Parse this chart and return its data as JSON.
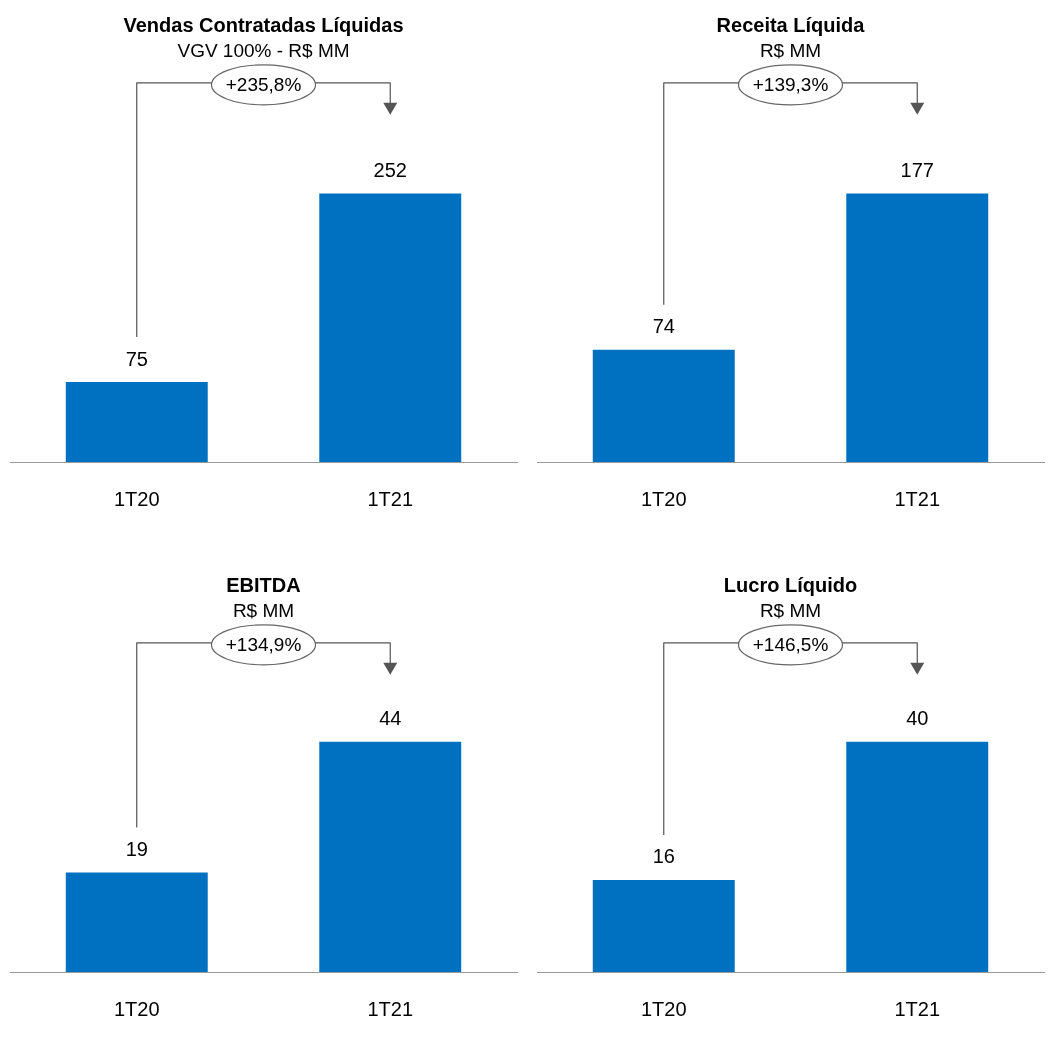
{
  "chart_data": [
    {
      "type": "bar",
      "title": "Vendas Contratadas Líquidas",
      "subtitle": "VGV 100% - R$ MM",
      "categories": [
        "1T20",
        "1T21"
      ],
      "values": [
        75,
        252
      ],
      "color": "#0070c0",
      "data_labels": true,
      "annotations": [
        "+235,8%"
      ]
    },
    {
      "type": "bar",
      "title": "Receita Líquida",
      "subtitle": "R$ MM",
      "categories": [
        "1T20",
        "1T21"
      ],
      "values": [
        74,
        177
      ],
      "color": "#0070c0",
      "data_labels": true,
      "annotations": [
        "+139,3%"
      ]
    },
    {
      "type": "bar",
      "title": "EBITDA",
      "subtitle": "R$ MM",
      "categories": [
        "1T20",
        "1T21"
      ],
      "values": [
        19,
        44
      ],
      "color": "#0070c0",
      "data_labels": true,
      "annotations": [
        "+134,9%"
      ]
    },
    {
      "type": "bar",
      "title": "Lucro Líquido",
      "subtitle": "R$ MM",
      "categories": [
        "1T20",
        "1T21"
      ],
      "values": [
        16,
        40
      ],
      "color": "#0070c0",
      "data_labels": true,
      "annotations": [
        "+146,5%"
      ]
    }
  ]
}
